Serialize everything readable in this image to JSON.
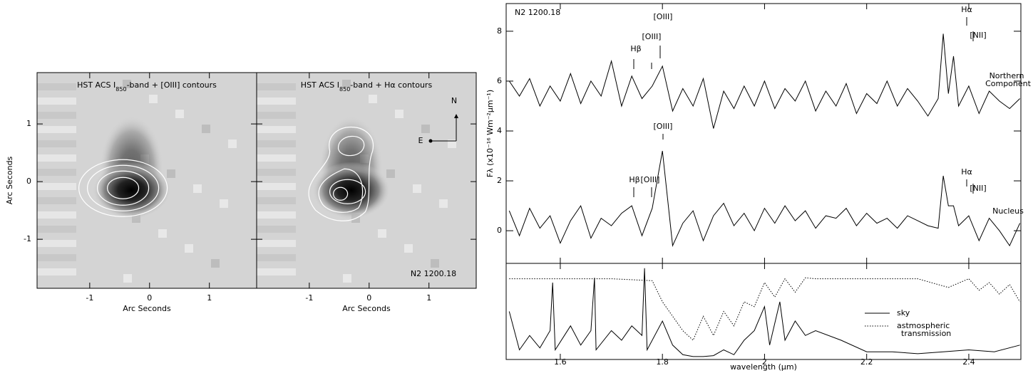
{
  "chart_data": [
    {
      "type": "image",
      "title_parts": [
        "HST ACS I",
        "850",
        "-band + [OIII] contours"
      ],
      "xlabel": "Arc Seconds",
      "ylabel": "Arc Seconds",
      "xlim": [
        -1.88,
        1.79
      ],
      "ylim": [
        -1.85,
        1.89
      ],
      "xticks": [
        -1,
        0,
        1
      ],
      "yticks": [
        -1,
        0,
        1
      ]
    },
    {
      "type": "image",
      "title_parts": [
        "HST ACS I",
        "850",
        "-band + Hα contours"
      ],
      "xlabel": "Arc Seconds",
      "xlim": [
        -1.88,
        1.79
      ],
      "ylim": [
        -1.85,
        1.89
      ],
      "xticks": [
        -1,
        0,
        1
      ],
      "yticks": [
        -1,
        0,
        1
      ],
      "annotations": [
        "N2 1200.18",
        "N",
        "E"
      ]
    },
    {
      "type": "line",
      "title": "N2 1200.18",
      "ylabel": "Fλ (x10⁻¹⁶ Wm⁻²µm⁻¹)",
      "xlim": [
        1.494,
        2.502
      ],
      "ylim": [
        -1.31,
        9.11
      ],
      "yticks": [
        0,
        2,
        4,
        6,
        8
      ],
      "xticks": [
        1.6,
        1.8,
        2.0,
        2.2,
        2.4
      ],
      "x": [
        1.5,
        1.52,
        1.54,
        1.56,
        1.58,
        1.6,
        1.62,
        1.64,
        1.66,
        1.68,
        1.7,
        1.72,
        1.74,
        1.76,
        1.78,
        1.8,
        1.82,
        1.84,
        1.86,
        1.88,
        1.9,
        1.92,
        1.94,
        1.96,
        1.98,
        2.0,
        2.02,
        2.04,
        2.06,
        2.08,
        2.1,
        2.12,
        2.14,
        2.16,
        2.18,
        2.2,
        2.22,
        2.24,
        2.26,
        2.28,
        2.3,
        2.32,
        2.34,
        2.35,
        2.36,
        2.37,
        2.38,
        2.4,
        2.42,
        2.44,
        2.46,
        2.48,
        2.5
      ],
      "series": [
        {
          "color": "#000000",
          "labels": [
            "Northern",
            "Component"
          ],
          "values": [
            6.0,
            5.4,
            6.1,
            5.0,
            5.8,
            5.2,
            6.3,
            5.1,
            6.0,
            5.4,
            6.8,
            5.0,
            6.2,
            5.3,
            5.8,
            6.6,
            4.8,
            5.7,
            5.0,
            6.1,
            4.1,
            5.6,
            4.9,
            5.8,
            5.0,
            6.0,
            4.9,
            5.7,
            5.2,
            6.0,
            4.8,
            5.6,
            5.0,
            5.9,
            4.7,
            5.5,
            5.1,
            6.0,
            5.0,
            5.7,
            5.2,
            4.6,
            5.3,
            7.9,
            5.5,
            7.0,
            5.0,
            5.8,
            4.7,
            5.6,
            5.2,
            4.9,
            5.3
          ]
        },
        {
          "color": "#000000",
          "labels": [
            "Nucleus"
          ],
          "values": [
            0.8,
            -0.2,
            0.9,
            0.1,
            0.6,
            -0.5,
            0.4,
            1.0,
            -0.3,
            0.5,
            0.2,
            0.7,
            1.0,
            -0.2,
            0.9,
            3.2,
            -0.6,
            0.3,
            0.8,
            -0.4,
            0.6,
            1.1,
            0.2,
            0.7,
            0.0,
            0.9,
            0.3,
            1.0,
            0.4,
            0.8,
            0.1,
            0.6,
            0.5,
            0.9,
            0.2,
            0.7,
            0.3,
            0.5,
            0.1,
            0.6,
            0.4,
            0.2,
            0.1,
            2.2,
            1.0,
            1.0,
            0.2,
            0.6,
            -0.4,
            0.5,
            0.0,
            -0.6,
            0.3
          ]
        }
      ],
      "annotations": [
        "Hα",
        "[NII]",
        "[OIII]",
        "[OIII]",
        "Hβ",
        "[OIII]",
        "Hα",
        "[NII]",
        "Hβ",
        "[OIII]"
      ]
    },
    {
      "type": "line",
      "xlabel": "wavelength (µm)",
      "xlim": [
        1.494,
        2.502
      ],
      "ylim": [
        0,
        1
      ],
      "xticks": [
        1.6,
        1.8,
        2.0,
        2.2,
        2.4
      ],
      "series": [
        {
          "name_lines": [
            "sky"
          ],
          "color": "#000000",
          "dash": false,
          "x": [
            1.5,
            1.52,
            1.54,
            1.56,
            1.58,
            1.585,
            1.59,
            1.62,
            1.64,
            1.66,
            1.667,
            1.67,
            1.7,
            1.72,
            1.74,
            1.76,
            1.765,
            1.77,
            1.8,
            1.82,
            1.84,
            1.86,
            1.88,
            1.9,
            1.92,
            1.94,
            1.96,
            1.98,
            2.0,
            2.01,
            2.03,
            2.04,
            2.06,
            2.08,
            2.1,
            2.15,
            2.2,
            2.25,
            2.3,
            2.35,
            2.4,
            2.45,
            2.5
          ],
          "values": [
            0.5,
            0.1,
            0.25,
            0.12,
            0.3,
            0.8,
            0.1,
            0.35,
            0.15,
            0.3,
            0.85,
            0.1,
            0.3,
            0.2,
            0.35,
            0.25,
            0.95,
            0.1,
            0.4,
            0.15,
            0.05,
            0.03,
            0.03,
            0.04,
            0.1,
            0.05,
            0.2,
            0.3,
            0.55,
            0.15,
            0.6,
            0.2,
            0.4,
            0.25,
            0.3,
            0.2,
            0.08,
            0.08,
            0.06,
            0.08,
            0.1,
            0.08,
            0.15
          ]
        },
        {
          "name_lines": [
            "astmospheric",
            "transmission"
          ],
          "color": "#000000",
          "dash": true,
          "x": [
            1.5,
            1.6,
            1.7,
            1.78,
            1.8,
            1.82,
            1.84,
            1.86,
            1.88,
            1.9,
            1.92,
            1.94,
            1.96,
            1.98,
            2.0,
            2.02,
            2.04,
            2.06,
            2.08,
            2.1,
            2.2,
            2.3,
            2.36,
            2.4,
            2.42,
            2.44,
            2.46,
            2.48,
            2.5
          ],
          "values": [
            0.84,
            0.84,
            0.84,
            0.82,
            0.6,
            0.45,
            0.3,
            0.2,
            0.45,
            0.25,
            0.5,
            0.35,
            0.6,
            0.55,
            0.8,
            0.65,
            0.84,
            0.7,
            0.85,
            0.84,
            0.84,
            0.84,
            0.75,
            0.84,
            0.72,
            0.8,
            0.68,
            0.78,
            0.6
          ]
        }
      ]
    }
  ]
}
